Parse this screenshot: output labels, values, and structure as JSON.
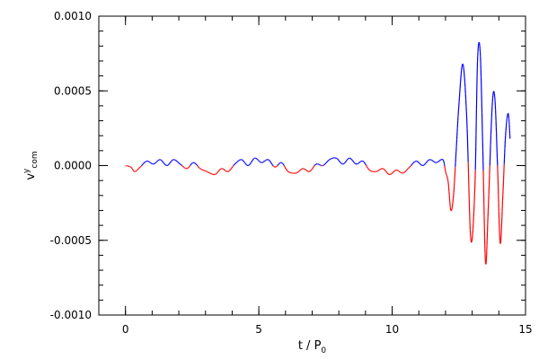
{
  "chart_data": {
    "type": "line",
    "title": "",
    "xlabel": {
      "main": "t / P",
      "sub": "0"
    },
    "ylabel": {
      "main": "v",
      "sup": "y",
      "sub": "com"
    },
    "xlim": [
      -1,
      15
    ],
    "ylim": [
      -0.001,
      0.001
    ],
    "x_ticks": [
      {
        "value": 0,
        "label": "0"
      },
      {
        "value": 5,
        "label": "5"
      },
      {
        "value": 10,
        "label": "10"
      },
      {
        "value": 15,
        "label": "15"
      }
    ],
    "x_minor_step": 1,
    "y_ticks": [
      {
        "value": -0.001,
        "label": "-0.0010"
      },
      {
        "value": -0.0005,
        "label": "-0.0005"
      },
      {
        "value": 0.0,
        "label": "0.0000"
      },
      {
        "value": 0.0005,
        "label": "0.0005"
      },
      {
        "value": 0.001,
        "label": "0.0010"
      }
    ],
    "y_minor_step": 0.0001,
    "grid": false,
    "legend": "none",
    "colors": {
      "positive": "#0000ff",
      "negative": "#ff0000",
      "axes": "#000000"
    },
    "series": [
      {
        "color_rule": "blue where y >= 0, red where y < 0",
        "x": [
          0.0,
          0.2,
          0.35,
          0.55,
          0.8,
          1.05,
          1.3,
          1.55,
          1.8,
          2.05,
          2.3,
          2.55,
          2.8,
          3.05,
          3.35,
          3.6,
          3.85,
          4.1,
          4.35,
          4.6,
          4.85,
          5.1,
          5.35,
          5.6,
          5.85,
          6.1,
          6.4,
          6.65,
          6.9,
          7.15,
          7.4,
          7.65,
          7.9,
          8.15,
          8.4,
          8.65,
          8.9,
          9.15,
          9.4,
          9.65,
          9.9,
          10.15,
          10.4,
          10.65,
          10.9,
          11.15,
          11.4,
          11.65,
          11.9,
          12.0,
          12.1,
          12.2,
          12.3,
          12.4,
          12.5,
          12.65,
          12.8,
          12.95,
          13.1,
          13.2,
          13.3,
          13.4,
          13.5,
          13.6,
          13.75,
          13.85,
          13.95,
          14.05,
          14.15,
          14.25,
          14.35,
          14.42
        ],
        "y": [
          0.0,
          -1e-05,
          -4e-05,
          -1e-05,
          3e-05,
          1e-05,
          4e-05,
          0.0,
          4e-05,
          1e-05,
          -2e-05,
          2e-05,
          -2e-05,
          -4e-05,
          -6e-05,
          -2e-05,
          -4e-05,
          1e-05,
          4e-05,
          0.0,
          5e-05,
          2e-05,
          4e-05,
          -1e-05,
          2e-05,
          -4e-05,
          -5e-05,
          -2e-05,
          -4e-05,
          1e-05,
          0.0,
          4e-05,
          5e-05,
          1e-05,
          5e-05,
          1e-05,
          3e-05,
          -3e-05,
          -4e-05,
          -2e-05,
          -6e-05,
          -3e-05,
          -5e-05,
          -1e-05,
          3e-05,
          0.0,
          4e-05,
          2e-05,
          4e-05,
          -4e-05,
          -0.00011,
          -0.0003,
          -0.0002,
          0.0001,
          0.0004,
          0.00068,
          0.0003,
          -0.0005,
          -0.00015,
          0.0007,
          0.00076,
          0.0001,
          -0.00065,
          -0.0003,
          0.0004,
          0.00045,
          0.0,
          -0.00052,
          -0.0002,
          0.0002,
          0.00035,
          0.00018
        ]
      }
    ]
  }
}
